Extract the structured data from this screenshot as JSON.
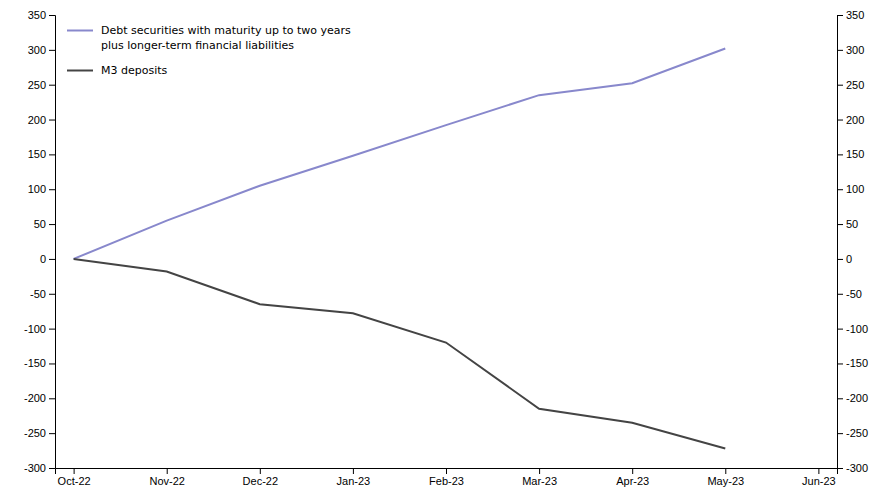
{
  "chart_data": {
    "type": "line",
    "categories": [
      "Oct-22",
      "Nov-22",
      "Dec-22",
      "Jan-23",
      "Feb-23",
      "Mar-23",
      "Apr-23",
      "May-23",
      "Jun-23"
    ],
    "series": [
      {
        "name": "Debt securities with maturity up to two years\nplus longer-term financial liabilities",
        "color": "#8888cc",
        "values": [
          0,
          55,
          105,
          148,
          192,
          235,
          252,
          302,
          null
        ]
      },
      {
        "name": "M3 deposits",
        "color": "#444444",
        "values": [
          0,
          -18,
          -65,
          -78,
          -120,
          -215,
          -235,
          -272,
          null
        ]
      }
    ],
    "ylim": [
      -300,
      350
    ],
    "yticks": [
      -300,
      -250,
      -200,
      -150,
      -100,
      -50,
      0,
      50,
      100,
      150,
      200,
      250,
      300,
      350
    ],
    "y2lim": [
      -300,
      350
    ],
    "y2ticks": [
      -300,
      -250,
      -200,
      -150,
      -100,
      -50,
      0,
      50,
      100,
      150,
      200,
      250,
      300,
      350
    ],
    "legend": "upper left",
    "grid": false
  }
}
